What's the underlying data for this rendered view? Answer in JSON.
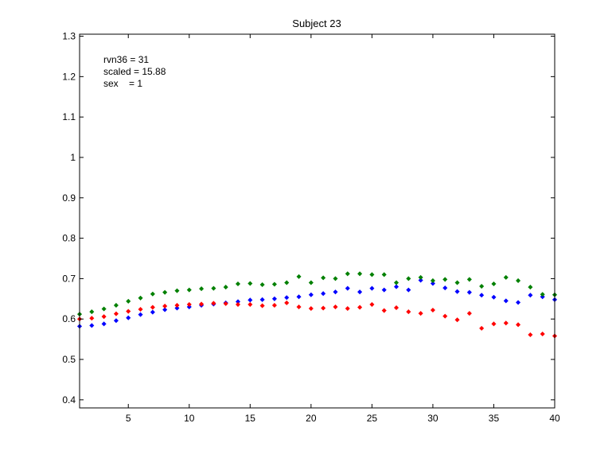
{
  "chart_data": {
    "type": "scatter",
    "title": "Subject 23",
    "xlabel": "",
    "ylabel": "",
    "xlim": [
      1,
      40
    ],
    "ylim": [
      0.38,
      1.305
    ],
    "x_ticks": [
      5,
      10,
      15,
      20,
      25,
      30,
      35,
      40
    ],
    "y_ticks": [
      0.4,
      0.5,
      0.6,
      0.7,
      0.8,
      0.9,
      1,
      1.1,
      1.2,
      1.3
    ],
    "x_tick_labels": [
      "5",
      "10",
      "15",
      "20",
      "25",
      "30",
      "35",
      "40"
    ],
    "y_tick_labels": [
      "0.4",
      "0.5",
      "0.6",
      "0.7",
      "0.8",
      "0.9",
      "1",
      "1.1",
      "1.2",
      "1.3"
    ],
    "annotations": [
      "rvn36 = 31",
      "scaled = 15.88",
      "sex    = 1"
    ],
    "grid": false,
    "marker": "diamond",
    "x": [
      1,
      2,
      3,
      4,
      5,
      6,
      7,
      8,
      9,
      10,
      11,
      12,
      13,
      14,
      15,
      16,
      17,
      18,
      19,
      20,
      21,
      22,
      23,
      24,
      25,
      26,
      27,
      28,
      29,
      30,
      31,
      32,
      33,
      34,
      35,
      36,
      37,
      38,
      39,
      40
    ],
    "series": [
      {
        "color": "#0000ff",
        "values": [
          0.582,
          0.584,
          0.588,
          0.596,
          0.603,
          0.611,
          0.617,
          0.623,
          0.627,
          0.63,
          0.634,
          0.637,
          0.64,
          0.643,
          0.647,
          0.648,
          0.65,
          0.653,
          0.655,
          0.66,
          0.663,
          0.667,
          0.676,
          0.667,
          0.676,
          0.672,
          0.68,
          0.672,
          0.696,
          0.688,
          0.677,
          0.668,
          0.666,
          0.659,
          0.654,
          0.645,
          0.641,
          0.659,
          0.655,
          0.648
        ]
      },
      {
        "color": "#ff0000",
        "values": [
          0.6,
          0.602,
          0.606,
          0.613,
          0.619,
          0.624,
          0.629,
          0.632,
          0.634,
          0.636,
          0.637,
          0.639,
          0.638,
          0.636,
          0.636,
          0.633,
          0.634,
          0.64,
          0.63,
          0.626,
          0.627,
          0.63,
          0.626,
          0.629,
          0.636,
          0.621,
          0.628,
          0.618,
          0.614,
          0.622,
          0.607,
          0.598,
          0.614,
          0.577,
          0.588,
          0.59,
          0.586,
          0.561,
          0.563,
          0.558
        ]
      },
      {
        "color": "#008000",
        "values": [
          0.612,
          0.618,
          0.625,
          0.634,
          0.644,
          0.652,
          0.662,
          0.666,
          0.67,
          0.672,
          0.675,
          0.676,
          0.679,
          0.687,
          0.688,
          0.685,
          0.686,
          0.69,
          0.705,
          0.69,
          0.702,
          0.7,
          0.712,
          0.712,
          0.71,
          0.71,
          0.69,
          0.7,
          0.703,
          0.695,
          0.698,
          0.69,
          0.698,
          0.681,
          0.687,
          0.703,
          0.695,
          0.679,
          0.661,
          0.66
        ]
      }
    ]
  }
}
